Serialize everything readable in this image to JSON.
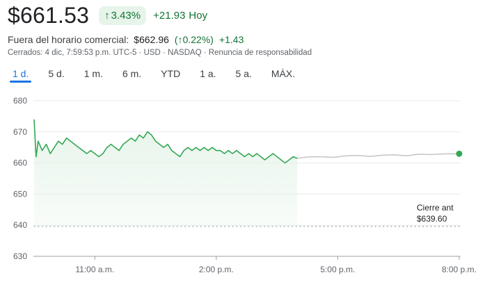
{
  "quote": {
    "price": "$661.53",
    "change_pct": "3.43%",
    "change_abs": "+21.93",
    "change_period": "Hoy",
    "up_color": "#137333",
    "arrow_icon": "arrow-up-icon"
  },
  "after_hours": {
    "label": "Fuera del horario comercial:",
    "price": "$662.96",
    "change_pct": "0.22%",
    "change_abs": "+1.43"
  },
  "meta": "Cerrados: 4 dic, 7:59:53 p.m. UTC-5 · USD · NASDAQ · Renuncia de responsabilidad",
  "tabs": [
    {
      "label": "1 d.",
      "active": true
    },
    {
      "label": "5 d."
    },
    {
      "label": "1 m."
    },
    {
      "label": "6 m."
    },
    {
      "label": "YTD"
    },
    {
      "label": "1 a."
    },
    {
      "label": "5 a."
    },
    {
      "label": "MÁX."
    }
  ],
  "chart_data": {
    "type": "line",
    "ylim": [
      630,
      680
    ],
    "yticks": [
      630,
      640,
      650,
      660,
      670,
      680
    ],
    "xlim_hours": [
      9.5,
      20.0
    ],
    "xticks": [
      {
        "t": 11,
        "label": "11:00 a.m."
      },
      {
        "t": 14,
        "label": "2:00 p.m."
      },
      {
        "t": 17,
        "label": "5:00 p.m."
      },
      {
        "t": 20,
        "label": "8:00 p.m."
      }
    ],
    "previous_close": {
      "label": "Cierre ant",
      "value_label": "$639.60",
      "value": 639.6
    },
    "colors": {
      "regular": "#34a853",
      "after_hours": "#c7c7c7",
      "fill": "#e6f4ea",
      "dot": "#34a853"
    },
    "series": [
      {
        "session": "regular",
        "x": [
          9.5,
          9.55,
          9.6,
          9.7,
          9.8,
          9.9,
          10.0,
          10.1,
          10.2,
          10.3,
          10.4,
          10.5,
          10.6,
          10.7,
          10.8,
          10.9,
          11.0,
          11.1,
          11.2,
          11.3,
          11.4,
          11.5,
          11.6,
          11.7,
          11.8,
          11.9,
          12.0,
          12.1,
          12.2,
          12.3,
          12.4,
          12.5,
          12.6,
          12.7,
          12.8,
          12.9,
          13.0,
          13.1,
          13.2,
          13.3,
          13.4,
          13.5,
          13.6,
          13.7,
          13.8,
          13.9,
          14.0,
          14.1,
          14.2,
          14.3,
          14.4,
          14.5,
          14.6,
          14.7,
          14.8,
          14.9,
          15.0,
          15.1,
          15.2,
          15.3,
          15.4,
          15.5,
          15.6,
          15.7,
          15.8,
          15.9,
          16.0
        ],
        "y": [
          674,
          662,
          667,
          664,
          666,
          663,
          665,
          667,
          666,
          668,
          667,
          666,
          665,
          664,
          663,
          664,
          663,
          662,
          663,
          665,
          666,
          665,
          664,
          666,
          667,
          668,
          667,
          669,
          668,
          670,
          669,
          667,
          666,
          665,
          666,
          664,
          663,
          662,
          664,
          665,
          664,
          665,
          664,
          665,
          664,
          665,
          664,
          664,
          663,
          664,
          663,
          664,
          663,
          662,
          663,
          662,
          663,
          662,
          661,
          662,
          663,
          662,
          661,
          660,
          661,
          662,
          661.5
        ]
      },
      {
        "session": "after_hours",
        "x": [
          16.0,
          16.3,
          16.6,
          16.9,
          17.2,
          17.5,
          17.8,
          18.1,
          18.4,
          18.7,
          19.0,
          19.3,
          19.6,
          20.0
        ],
        "y": [
          661.5,
          662,
          662,
          661.8,
          662.3,
          662.4,
          662.1,
          662.5,
          662.6,
          662.3,
          662.8,
          662.7,
          662.9,
          662.96
        ]
      }
    ]
  }
}
